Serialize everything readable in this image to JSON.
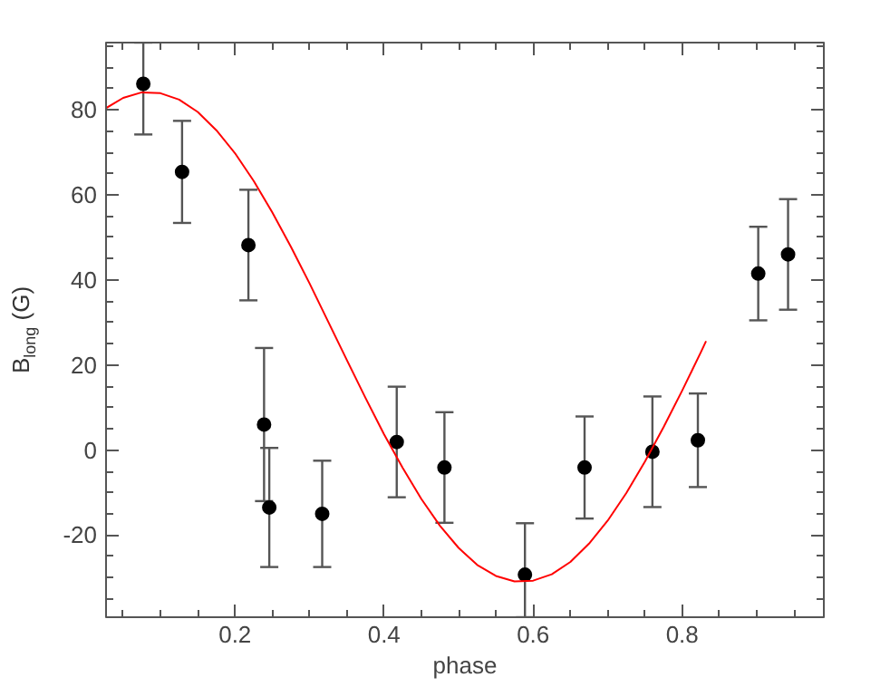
{
  "chart_data": {
    "type": "scatter",
    "xlabel": "phase",
    "ylabel": "B$_{long}$ (G)",
    "xlim": [
      0.027,
      0.99
    ],
    "ylim": [
      -39.3,
      95.8
    ],
    "xticks": [
      0.2,
      0.4,
      0.6,
      0.8
    ],
    "yticks": [
      -20,
      0,
      20,
      40,
      60,
      80
    ],
    "grid": false,
    "marker": "circle",
    "series": [
      {
        "type": "scatter",
        "color": "#000000",
        "x": [
          0.077,
          0.129,
          0.218,
          0.239,
          0.246,
          0.317,
          0.417,
          0.481,
          0.589,
          0.669,
          0.76,
          0.821,
          0.902,
          0.942
        ],
        "values": [
          86.1,
          65.4,
          48.2,
          6.0,
          -13.5,
          -15.0,
          1.9,
          -4.1,
          -29.3,
          -4.1,
          -0.4,
          2.3,
          41.5,
          46.0
        ],
        "errors": [
          [
            74.2,
            95.8
          ],
          12,
          13,
          18,
          14,
          12.5,
          13,
          13,
          [
            -39.3,
            -17.2
          ],
          12,
          13,
          11,
          11,
          13
        ]
      },
      {
        "type": "line",
        "color": "#ff0000",
        "line_style": "solid",
        "marker": "none",
        "x": [
          0.027,
          0.05,
          0.075,
          0.1,
          0.125,
          0.15,
          0.175,
          0.2,
          0.225,
          0.25,
          0.275,
          0.3,
          0.325,
          0.35,
          0.375,
          0.4,
          0.425,
          0.45,
          0.475,
          0.5,
          0.525,
          0.55,
          0.575,
          0.6,
          0.625,
          0.65,
          0.675,
          0.7,
          0.725,
          0.75,
          0.775,
          0.8,
          0.825,
          0.832
        ],
        "values": [
          80.4,
          82.8,
          84.1,
          83.9,
          82.4,
          79.5,
          75.2,
          69.8,
          63.3,
          55.9,
          47.8,
          39.2,
          30.2,
          21.2,
          12.3,
          3.7,
          -4.2,
          -11.5,
          -17.8,
          -23.0,
          -27.0,
          -29.6,
          -30.9,
          -30.7,
          -29.2,
          -26.3,
          -22.0,
          -16.6,
          -10.1,
          -2.7,
          5.4,
          14.0,
          23.0,
          25.6
        ]
      }
    ]
  }
}
